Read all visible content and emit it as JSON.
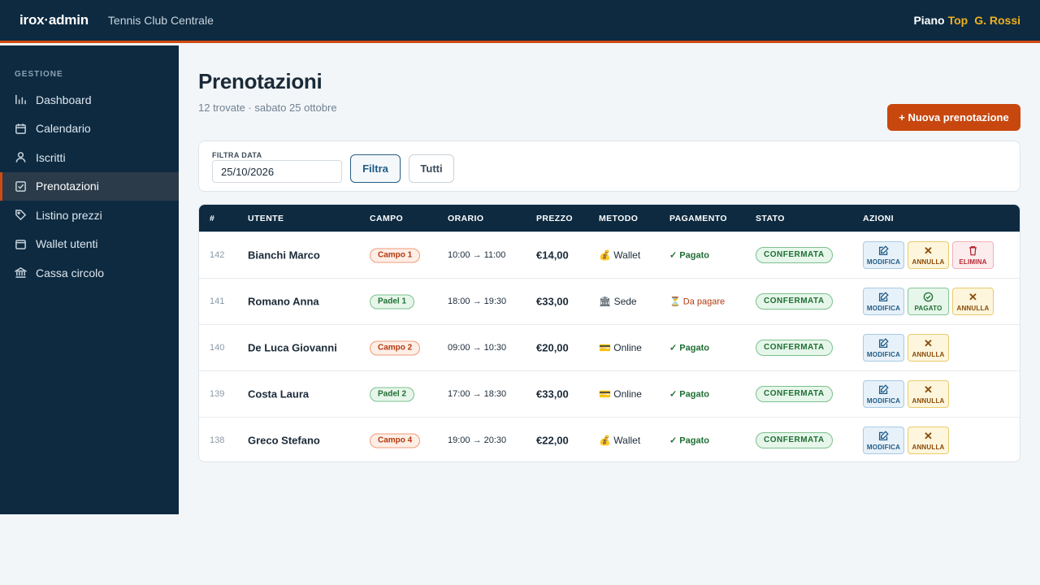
{
  "header": {
    "brand": "irox·admin",
    "club": "Tennis Club Centrale",
    "plan_prefix": "Piano",
    "plan": "Top",
    "user": "G. Rossi"
  },
  "sidebar": {
    "section": "GESTIONE",
    "items": [
      {
        "label": "Dashboard",
        "icon": "bar-chart-icon"
      },
      {
        "label": "Calendario",
        "icon": "calendar-icon"
      },
      {
        "label": "Iscritti",
        "icon": "user-icon"
      },
      {
        "label": "Prenotazioni",
        "icon": "check-square-icon",
        "active": true
      },
      {
        "label": "Listino prezzi",
        "icon": "tag-icon"
      },
      {
        "label": "Wallet utenti",
        "icon": "wallet-icon"
      },
      {
        "label": "Cassa circolo",
        "icon": "bank-icon"
      }
    ]
  },
  "page": {
    "title": "Prenotazioni",
    "subtitle": "12 trovate · sabato 25 ottobre",
    "new_button": "+ Nuova prenotazione"
  },
  "filter": {
    "label": "FILTRA DATA",
    "date_value": "25/10/2026",
    "filter_button": "Filtra",
    "all_button": "Tutti"
  },
  "table": {
    "columns": [
      "#",
      "UTENTE",
      "CAMPO",
      "ORARIO",
      "PREZZO",
      "METODO",
      "PAGAMENTO",
      "STATO",
      "AZIONI"
    ],
    "rows": [
      {
        "id": "142",
        "user": "Bianchi Marco",
        "campo": "Campo 1",
        "campo_type": "orange",
        "orario": "10:00 → 11:00",
        "prezzo": "€14,00",
        "metodo_icon": "💰",
        "metodo": "Wallet",
        "pagamento": "✓ Pagato",
        "pag_ok": true,
        "stato": "CONFERMATA",
        "actions": [
          "MODIFICA",
          "ANNULLA",
          "ELIMINA"
        ]
      },
      {
        "id": "141",
        "user": "Romano Anna",
        "campo": "Padel 1",
        "campo_type": "green",
        "orario": "18:00 → 19:30",
        "prezzo": "€33,00",
        "metodo_icon": "🏛",
        "metodo": "Sede",
        "pagamento": "⏳ Da pagare",
        "pag_ok": false,
        "stato": "CONFERMATA",
        "actions": [
          "MODIFICA",
          "PAGATO",
          "ANNULLA"
        ]
      },
      {
        "id": "140",
        "user": "De Luca Giovanni",
        "campo": "Campo 2",
        "campo_type": "orange",
        "orario": "09:00 → 10:30",
        "prezzo": "€20,00",
        "metodo_icon": "💳",
        "metodo": "Online",
        "pagamento": "✓ Pagato",
        "pag_ok": true,
        "stato": "CONFERMATA",
        "actions": [
          "MODIFICA",
          "ANNULLA"
        ]
      },
      {
        "id": "139",
        "user": "Costa Laura",
        "campo": "Padel 2",
        "campo_type": "green",
        "orario": "17:00 → 18:30",
        "prezzo": "€33,00",
        "metodo_icon": "💳",
        "metodo": "Online",
        "pagamento": "✓ Pagato",
        "pag_ok": true,
        "stato": "CONFERMATA",
        "actions": [
          "MODIFICA",
          "ANNULLA"
        ]
      },
      {
        "id": "138",
        "user": "Greco Stefano",
        "campo": "Campo 4",
        "campo_type": "orange",
        "orario": "19:00 → 20:30",
        "prezzo": "€22,00",
        "metodo_icon": "💰",
        "metodo": "Wallet",
        "pagamento": "✓ Pagato",
        "pag_ok": true,
        "stato": "CONFERMATA",
        "actions": [
          "MODIFICA",
          "ANNULLA"
        ]
      }
    ]
  },
  "colors": {
    "navy": "#0d2a40",
    "accent": "#c8470f",
    "success": "#1f6e33"
  }
}
